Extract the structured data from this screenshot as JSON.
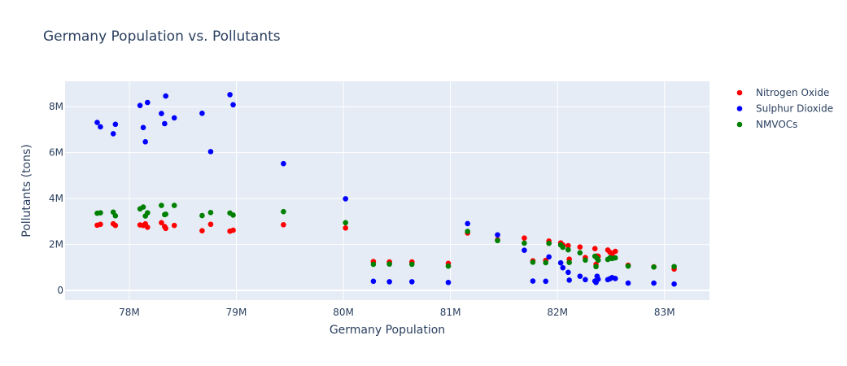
{
  "chart_data": {
    "type": "scatter",
    "title": "Germany Population vs. Pollutants",
    "xlabel": "Germany Population",
    "ylabel": "Pollutants (tons)",
    "xlim": [
      77400000,
      83420000
    ],
    "ylim": [
      -420000,
      9100000
    ],
    "x_ticks": [
      78000000,
      79000000,
      80000000,
      81000000,
      82000000,
      83000000
    ],
    "x_tick_labels": [
      "78M",
      "79M",
      "80M",
      "81M",
      "82M",
      "83M"
    ],
    "y_ticks": [
      0,
      2000000,
      4000000,
      6000000,
      8000000
    ],
    "y_tick_labels": [
      "0",
      "2M",
      "4M",
      "6M",
      "8M"
    ],
    "grid": true,
    "legend_position": "top-right",
    "x": [
      77700000,
      77730000,
      77850000,
      77870000,
      78100000,
      78130000,
      78150000,
      78170000,
      78300000,
      78330000,
      78340000,
      78420000,
      78680000,
      78760000,
      78940000,
      78970000,
      79440000,
      80020000,
      80280000,
      80430000,
      80640000,
      80980000,
      81160000,
      81440000,
      81690000,
      81770000,
      81890000,
      81920000,
      82030000,
      82050000,
      82100000,
      82110000,
      82210000,
      82260000,
      82350000,
      82360000,
      82370000,
      82380000,
      82470000,
      82490000,
      82510000,
      82540000,
      82660000,
      82900000,
      83090000
    ],
    "series": [
      {
        "name": "Nitrogen Oxide",
        "color": "#ff0000",
        "values": [
          2840000,
          2880000,
          2900000,
          2830000,
          2850000,
          2830000,
          2900000,
          2750000,
          2950000,
          2780000,
          2700000,
          2830000,
          2600000,
          2880000,
          2580000,
          2620000,
          2860000,
          2720000,
          1260000,
          1240000,
          1240000,
          1180000,
          2500000,
          2200000,
          2280000,
          1290000,
          1310000,
          2150000,
          2070000,
          1980000,
          1950000,
          1360000,
          1890000,
          1430000,
          1820000,
          1140000,
          1500000,
          1490000,
          1760000,
          1660000,
          1590000,
          1700000,
          1100000,
          1030000,
          930000
        ]
      },
      {
        "name": "Sulphur Dioxide",
        "color": "#0000ff",
        "values": [
          7310000,
          7120000,
          6820000,
          7230000,
          8050000,
          7090000,
          6470000,
          8180000,
          7700000,
          7260000,
          8460000,
          7510000,
          7710000,
          6040000,
          8520000,
          8080000,
          5520000,
          3990000,
          400000,
          380000,
          380000,
          350000,
          2910000,
          2420000,
          1750000,
          410000,
          400000,
          1460000,
          1200000,
          990000,
          790000,
          450000,
          620000,
          470000,
          410000,
          350000,
          620000,
          490000,
          470000,
          510000,
          560000,
          520000,
          320000,
          320000,
          280000
        ]
      },
      {
        "name": "NMVOCs",
        "color": "#008000",
        "values": [
          3360000,
          3380000,
          3410000,
          3250000,
          3550000,
          3630000,
          3240000,
          3380000,
          3700000,
          3300000,
          3320000,
          3700000,
          3260000,
          3390000,
          3370000,
          3280000,
          3430000,
          2950000,
          1140000,
          1150000,
          1140000,
          1060000,
          2570000,
          2170000,
          2060000,
          1230000,
          1210000,
          2050000,
          1980000,
          1880000,
          1770000,
          1220000,
          1640000,
          1320000,
          1490000,
          1040000,
          1400000,
          1320000,
          1350000,
          1420000,
          1390000,
          1420000,
          1060000,
          1020000,
          1040000
        ]
      }
    ]
  }
}
